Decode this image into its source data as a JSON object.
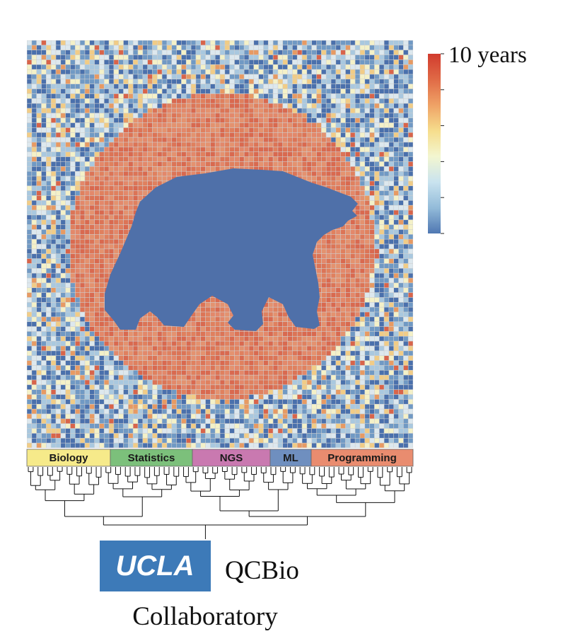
{
  "colorbar": {
    "label": "10 years",
    "colors": [
      "#d13b2e",
      "#e06a46",
      "#efa266",
      "#f6dd8c",
      "#f3f6d0",
      "#c9e3ef",
      "#93bbd9",
      "#4f77b2"
    ]
  },
  "heatmap": {
    "palette": [
      "#4a70ac",
      "#7099c4",
      "#a9c8df",
      "#dde8ee",
      "#f4f1c8",
      "#f1cc86",
      "#e79a63",
      "#d8644a"
    ],
    "ring_palette": [
      "#e3886a",
      "#e0805e",
      "#d9694f",
      "#e4926f",
      "#dc7456"
    ],
    "bear_color": "#4f70a9",
    "grid_color": "#cfcfcf"
  },
  "categories": [
    {
      "label": "Biology",
      "color": "#f6ea8a"
    },
    {
      "label": "Statistics",
      "color": "#7cc07b"
    },
    {
      "label": "NGS",
      "color": "#c979b0"
    },
    {
      "label": "ML",
      "color": "#6f8fbf"
    },
    {
      "label": "Programming",
      "color": "#e98c6f"
    }
  ],
  "logo": {
    "ucla": "UCLA",
    "ucla_bg": "#3d7ab8",
    "qcbio": "QCBio",
    "collaboratory": "Collaboratory"
  }
}
